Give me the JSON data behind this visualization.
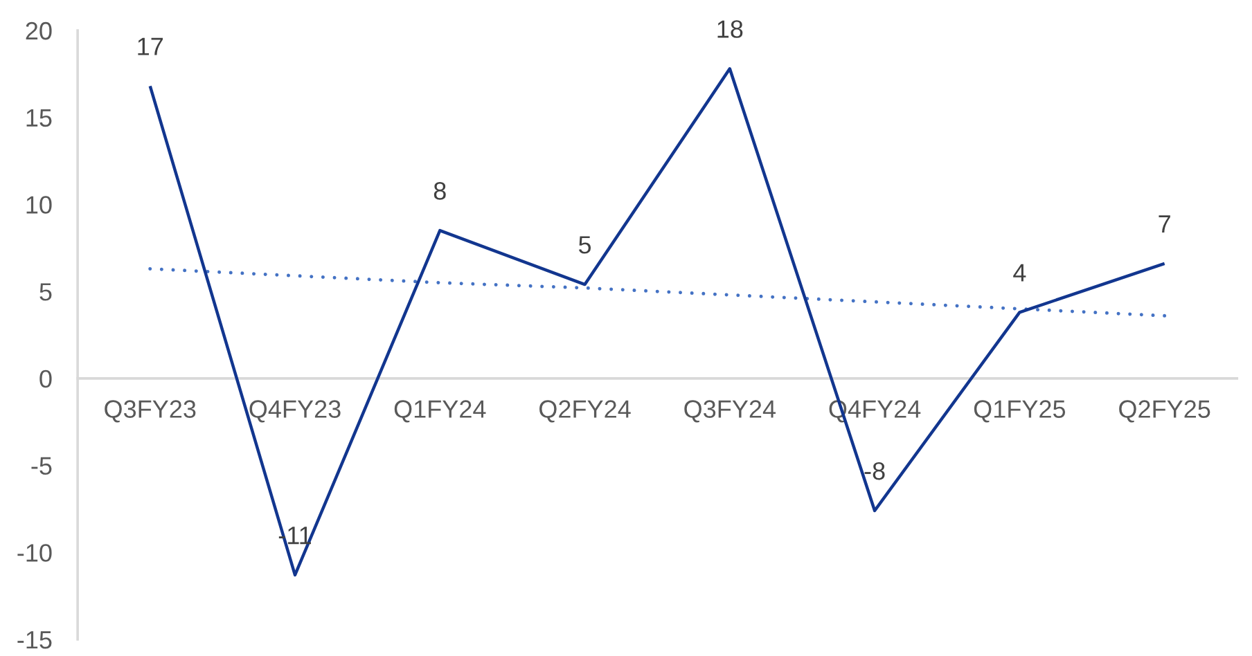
{
  "chart_data": {
    "type": "line",
    "categories": [
      "Q3FY23",
      "Q4FY23",
      "Q1FY24",
      "Q2FY24",
      "Q3FY24",
      "Q4FY24",
      "Q1FY25",
      "Q2FY25"
    ],
    "series": [
      {
        "color": "#12368f",
        "line_style": "solid",
        "values": [
          16.8,
          -11.3,
          8.5,
          5.4,
          17.8,
          -7.6,
          3.8,
          6.6
        ],
        "value_labels": [
          "17",
          "-11",
          "8",
          "5",
          "18",
          "-8",
          "4",
          "7"
        ]
      },
      {
        "color": "#4472c4",
        "line_style": "dotted",
        "values": [
          6.3,
          5.9,
          5.5,
          5.2,
          4.8,
          4.4,
          4.0,
          3.6
        ]
      }
    ],
    "ylim": [
      -15,
      20
    ],
    "yticks": [
      -15,
      -10,
      -5,
      0,
      5,
      10,
      15,
      20
    ],
    "marker": "none",
    "grid": false
  }
}
